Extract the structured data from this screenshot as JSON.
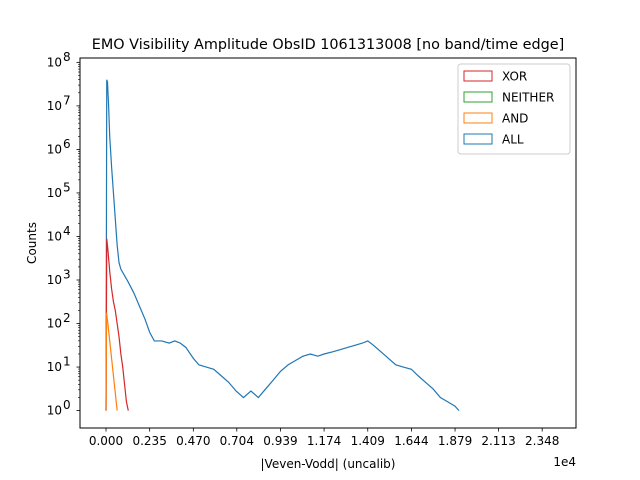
{
  "chart_data": {
    "type": "histogram",
    "title": "EMO Visibility Amplitude ObsID 1061313008 [no band/time edge]",
    "xlabel": "|Veven-Vodd| (uncalib)",
    "ylabel": "Counts",
    "x_offset_text": "1e4",
    "y_scale": "log",
    "xlim": [
      -0.14,
      2.53
    ],
    "ylim_exp": [
      -0.4,
      8.1
    ],
    "grid": false,
    "legend_placement": "top-right",
    "x_ticks": [
      {
        "value": 0.0,
        "label": "0.000"
      },
      {
        "value": 0.235,
        "label": "0.235"
      },
      {
        "value": 0.47,
        "label": "0.470"
      },
      {
        "value": 0.704,
        "label": "0.704"
      },
      {
        "value": 0.939,
        "label": "0.939"
      },
      {
        "value": 1.174,
        "label": "1.174"
      },
      {
        "value": 1.409,
        "label": "1.409"
      },
      {
        "value": 1.644,
        "label": "1.644"
      },
      {
        "value": 1.879,
        "label": "1.879"
      },
      {
        "value": 2.113,
        "label": "2.113"
      },
      {
        "value": 2.348,
        "label": "2.348"
      }
    ],
    "y_ticks": [
      {
        "exp": 0,
        "base": "10",
        "sup": "0"
      },
      {
        "exp": 1,
        "base": "10",
        "sup": "1"
      },
      {
        "exp": 2,
        "base": "10",
        "sup": "2"
      },
      {
        "exp": 3,
        "base": "10",
        "sup": "3"
      },
      {
        "exp": 4,
        "base": "10",
        "sup": "4"
      },
      {
        "exp": 5,
        "base": "10",
        "sup": "5"
      },
      {
        "exp": 6,
        "base": "10",
        "sup": "6"
      },
      {
        "exp": 7,
        "base": "10",
        "sup": "7"
      },
      {
        "exp": 8,
        "base": "10",
        "sup": "8"
      }
    ],
    "legend": [
      {
        "label": "XOR",
        "color": "#d62728"
      },
      {
        "label": "NEITHER",
        "color": "#2ca02c"
      },
      {
        "label": "AND",
        "color": "#ff7f0e"
      },
      {
        "label": "ALL",
        "color": "#1f77b4"
      }
    ],
    "series": [
      {
        "name": "ALL",
        "color": "#1f77b4",
        "points": [
          [
            0.0,
            0.0
          ],
          [
            0.004,
            7.6
          ],
          [
            0.008,
            7.55
          ],
          [
            0.014,
            7.0
          ],
          [
            0.02,
            6.3
          ],
          [
            0.03,
            5.6
          ],
          [
            0.04,
            5.0
          ],
          [
            0.05,
            4.4
          ],
          [
            0.06,
            3.8
          ],
          [
            0.07,
            3.4
          ],
          [
            0.08,
            3.25
          ],
          [
            0.1,
            3.1
          ],
          [
            0.12,
            2.95
          ],
          [
            0.15,
            2.7
          ],
          [
            0.18,
            2.4
          ],
          [
            0.21,
            2.1
          ],
          [
            0.235,
            1.8
          ],
          [
            0.26,
            1.6
          ],
          [
            0.3,
            1.6
          ],
          [
            0.34,
            1.55
          ],
          [
            0.37,
            1.6
          ],
          [
            0.4,
            1.55
          ],
          [
            0.43,
            1.45
          ],
          [
            0.47,
            1.2
          ],
          [
            0.5,
            1.05
          ],
          [
            0.54,
            1.0
          ],
          [
            0.58,
            0.95
          ],
          [
            0.62,
            0.8
          ],
          [
            0.66,
            0.65
          ],
          [
            0.7,
            0.45
          ],
          [
            0.74,
            0.3
          ],
          [
            0.78,
            0.45
          ],
          [
            0.82,
            0.3
          ],
          [
            0.86,
            0.5
          ],
          [
            0.9,
            0.7
          ],
          [
            0.939,
            0.9
          ],
          [
            0.98,
            1.05
          ],
          [
            1.02,
            1.15
          ],
          [
            1.06,
            1.25
          ],
          [
            1.1,
            1.3
          ],
          [
            1.14,
            1.25
          ],
          [
            1.174,
            1.3
          ],
          [
            1.22,
            1.35
          ],
          [
            1.26,
            1.4
          ],
          [
            1.3,
            1.45
          ],
          [
            1.34,
            1.5
          ],
          [
            1.38,
            1.55
          ],
          [
            1.409,
            1.6
          ],
          [
            1.44,
            1.5
          ],
          [
            1.48,
            1.35
          ],
          [
            1.52,
            1.2
          ],
          [
            1.56,
            1.05
          ],
          [
            1.6,
            1.0
          ],
          [
            1.644,
            0.95
          ],
          [
            1.68,
            0.8
          ],
          [
            1.72,
            0.65
          ],
          [
            1.76,
            0.5
          ],
          [
            1.8,
            0.3
          ],
          [
            1.84,
            0.2
          ],
          [
            1.879,
            0.1
          ],
          [
            1.9,
            0.0
          ]
        ]
      },
      {
        "name": "XOR",
        "color": "#d62728",
        "points": [
          [
            0.0,
            0.0
          ],
          [
            0.004,
            3.95
          ],
          [
            0.01,
            3.7
          ],
          [
            0.02,
            3.2
          ],
          [
            0.03,
            2.8
          ],
          [
            0.04,
            2.5
          ],
          [
            0.05,
            2.3
          ],
          [
            0.06,
            2.0
          ],
          [
            0.07,
            1.7
          ],
          [
            0.08,
            1.3
          ],
          [
            0.09,
            1.0
          ],
          [
            0.1,
            0.6
          ],
          [
            0.11,
            0.2
          ],
          [
            0.12,
            0.0
          ]
        ]
      },
      {
        "name": "AND",
        "color": "#ff7f0e",
        "points": [
          [
            0.0,
            0.0
          ],
          [
            0.003,
            2.25
          ],
          [
            0.01,
            2.0
          ],
          [
            0.02,
            1.6
          ],
          [
            0.03,
            1.2
          ],
          [
            0.04,
            0.8
          ],
          [
            0.05,
            0.4
          ],
          [
            0.06,
            0.0
          ]
        ]
      }
    ]
  }
}
